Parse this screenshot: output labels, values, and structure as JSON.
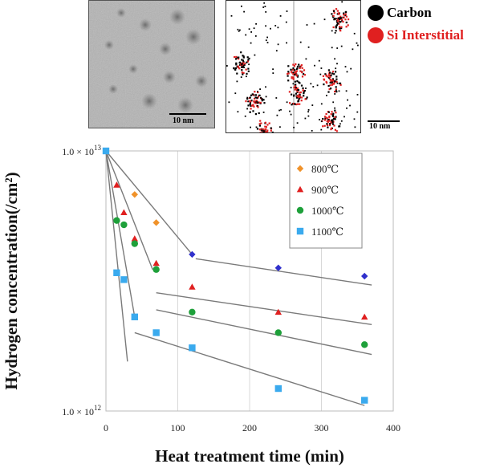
{
  "panels": {
    "tem_scale": "10 nm",
    "sim_scale": "10 nm",
    "atom_legend": [
      {
        "label": "Carbon",
        "color": "#000000"
      },
      {
        "label": "Si Interstitial",
        "color": "#e02020"
      }
    ]
  },
  "chart_data": {
    "type": "scatter",
    "title": "",
    "xlabel": "Heat treatment time (min)",
    "ylabel": "Hydrogen concentration(/cm²)",
    "xlim": [
      0,
      400
    ],
    "ylim": [
      1000000000000.0,
      10000000000000.0
    ],
    "yscale": "log",
    "x_ticks": [
      "0",
      "100",
      "200",
      "300",
      "400"
    ],
    "y_ticks": [
      {
        "base": "1.0 × 10",
        "exp": "13"
      },
      {
        "base": "1.0 × 10",
        "exp": "12"
      }
    ],
    "grid": "vertical",
    "legend_position": "top-right",
    "series": [
      {
        "name": "800℃",
        "color": "#f0922a",
        "marker": "diamond",
        "x": [
          40,
          70
        ],
        "y": [
          6800000000000.0,
          5300000000000.0
        ]
      },
      {
        "name": "900℃",
        "color": "#e02020",
        "marker": "triangle",
        "x": [
          15,
          25,
          40,
          70,
          120,
          240,
          360
        ],
        "y": [
          7400000000000.0,
          5800000000000.0,
          4600000000000.0,
          3700000000000.0,
          3000000000000.0,
          2400000000000.0,
          2300000000000.0
        ]
      },
      {
        "name": "1000℃",
        "color": "#1ea03a",
        "marker": "circle",
        "x": [
          15,
          25,
          40,
          70,
          120,
          240,
          360
        ],
        "y": [
          5400000000000.0,
          5200000000000.0,
          4400000000000.0,
          3500000000000.0,
          2400000000000.0,
          2000000000000.0,
          1800000000000.0
        ]
      },
      {
        "name": "1100℃",
        "color": "#3aaaee",
        "marker": "square",
        "x": [
          15,
          25,
          40,
          70,
          120,
          240,
          360
        ],
        "y": [
          3400000000000.0,
          3200000000000.0,
          2300000000000.0,
          2000000000000.0,
          1750000000000.0,
          1220000000000.0,
          1100000000000.0
        ]
      }
    ],
    "overlap_points": {
      "color": "#3030cc",
      "marker": "diamond",
      "x": [
        120,
        240,
        360
      ],
      "y": [
        4000000000000.0,
        3550000000000.0,
        3300000000000.0
      ]
    },
    "fit_lines": [
      {
        "x": [
          0,
          120
        ],
        "y": [
          10000000000000.0,
          4000000000000.0
        ]
      },
      {
        "x": [
          0,
          65
        ],
        "y": [
          10000000000000.0,
          3500000000000.0
        ]
      },
      {
        "x": [
          0,
          40
        ],
        "y": [
          10000000000000.0,
          2300000000000.0
        ]
      },
      {
        "x": [
          0,
          30
        ],
        "y": [
          10000000000000.0,
          1550000000000.0
        ]
      },
      {
        "x": [
          125,
          370
        ],
        "y": [
          3850000000000.0,
          3050000000000.0
        ]
      },
      {
        "x": [
          70,
          370
        ],
        "y": [
          2850000000000.0,
          2150000000000.0
        ]
      },
      {
        "x": [
          70,
          370
        ],
        "y": [
          2450000000000.0,
          1650000000000.0
        ]
      },
      {
        "x": [
          40,
          360
        ],
        "y": [
          2000000000000.0,
          1050000000000.0
        ]
      }
    ],
    "start_point": {
      "x": 0,
      "y": 10000000000000.0,
      "color": "#3aaaee"
    }
  }
}
